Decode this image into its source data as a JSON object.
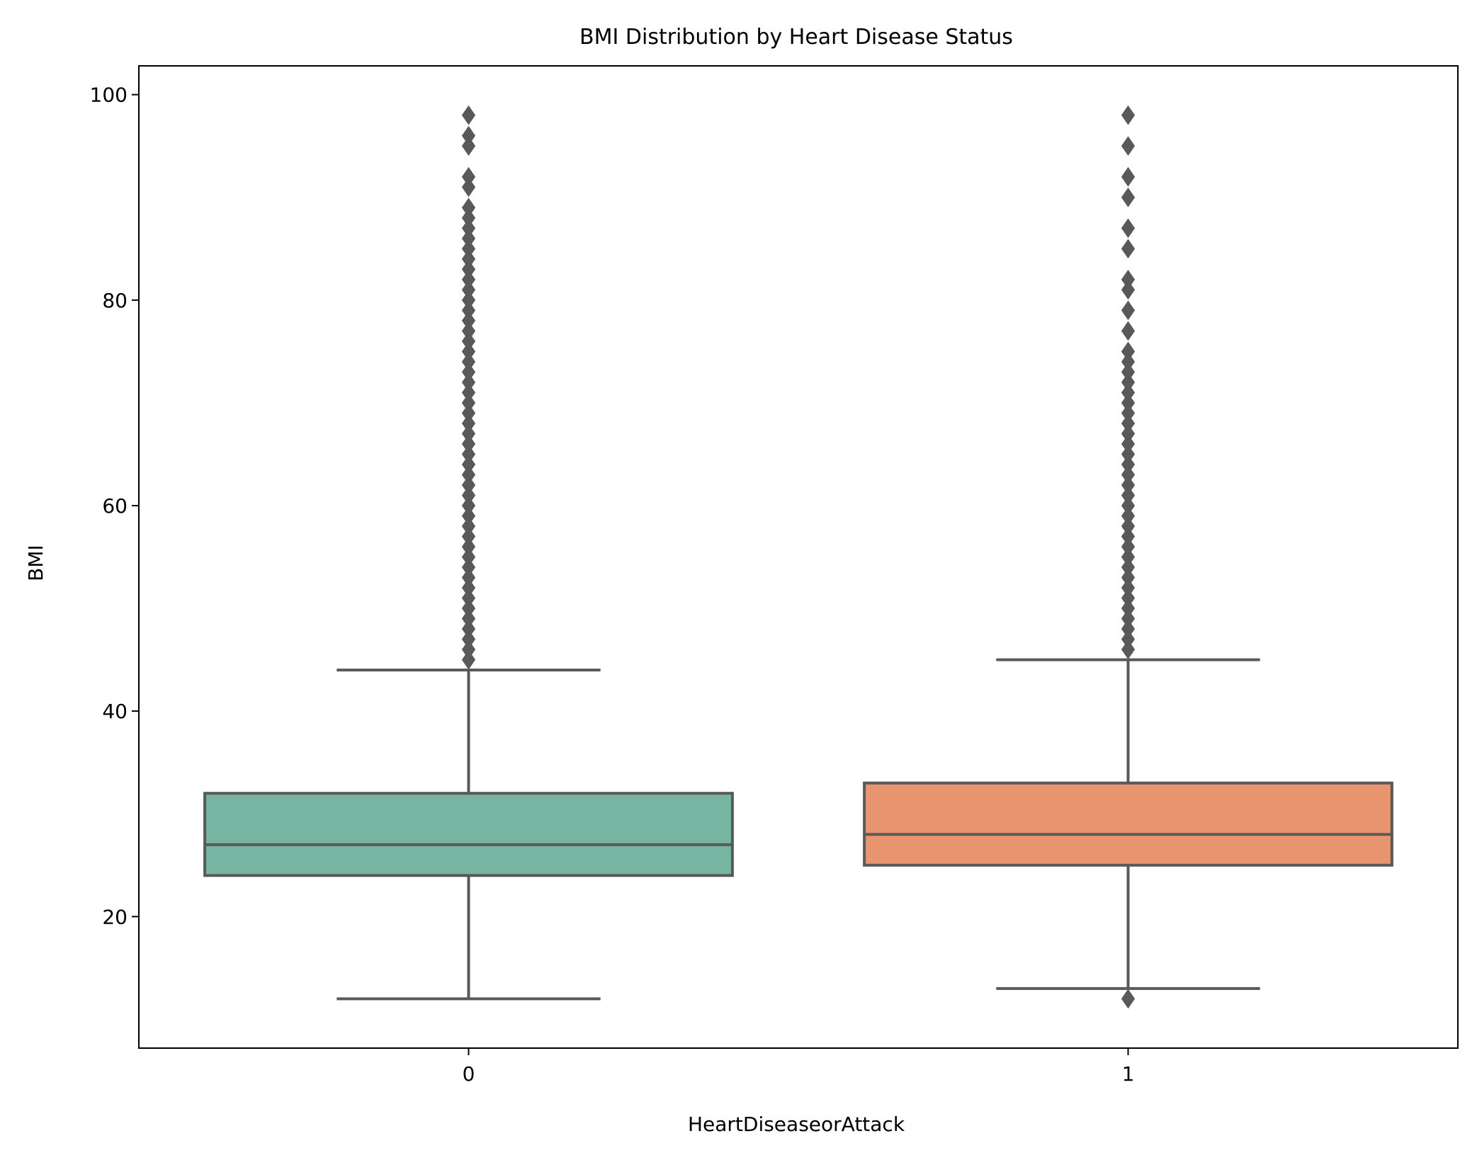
{
  "chart_data": {
    "type": "box",
    "title": "BMI Distribution by Heart Disease Status",
    "xlabel": "HeartDiseaseorAttack",
    "ylabel": "BMI",
    "categories": [
      "0",
      "1"
    ],
    "ylim": [
      7.2,
      102.8
    ],
    "yticks": [
      20,
      40,
      60,
      80,
      100
    ],
    "grid": false,
    "legend": "none",
    "colors": {
      "box_fill": [
        "#75b5a1",
        "#e8956f"
      ],
      "line": "#595959",
      "axes": "#000000"
    },
    "boxes": [
      {
        "category": "0",
        "whisker_low": 12,
        "q1": 24,
        "median": 27,
        "q3": 32,
        "whisker_high": 44,
        "outliers": [
          45,
          46,
          47,
          48,
          49,
          50,
          51,
          52,
          53,
          54,
          55,
          56,
          57,
          58,
          59,
          60,
          61,
          62,
          63,
          64,
          65,
          66,
          67,
          68,
          69,
          70,
          71,
          72,
          73,
          74,
          75,
          76,
          77,
          78,
          79,
          80,
          81,
          82,
          83,
          84,
          85,
          86,
          87,
          88,
          89,
          91,
          92,
          95,
          96,
          98
        ]
      },
      {
        "category": "1",
        "whisker_low": 13,
        "q1": 25,
        "median": 28,
        "q3": 33,
        "whisker_high": 45,
        "outliers": [
          12,
          46,
          47,
          48,
          49,
          50,
          51,
          52,
          53,
          54,
          55,
          56,
          57,
          58,
          59,
          60,
          61,
          62,
          63,
          64,
          65,
          66,
          67,
          68,
          69,
          70,
          71,
          72,
          73,
          74,
          75,
          77,
          79,
          81,
          82,
          85,
          87,
          90,
          92,
          95,
          98
        ]
      }
    ]
  }
}
